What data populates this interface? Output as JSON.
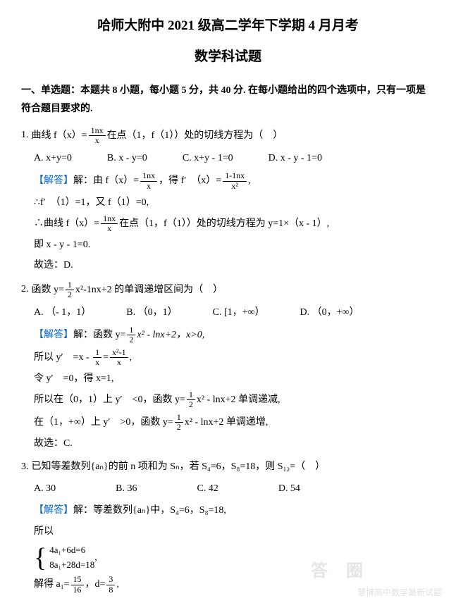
{
  "header": {
    "title_main": "哈师大附中 2021 级高二学年下学期 4 月月考",
    "title_sub": "数学科试题",
    "section_intro": "一、单选题：本题共 8 小题，每小题 5 分，共 40 分. 在每小题给出的四个选项中，只有一项是符合题目要求的."
  },
  "q1": {
    "num": "1.",
    "stem_pre": "曲线 f（x）=",
    "frac_num": "1nx",
    "frac_den": "x",
    "stem_post": "在点（1，f（1））处的切线方程为（　）",
    "opts": {
      "A": "A.  x+y=0",
      "B": "B.  x - y=0",
      "C": "C.  x+y - 1=0",
      "D": "D.  x - y - 1=0"
    },
    "sol": {
      "label": "【解答】",
      "l1a": "解：由 f（x）=",
      "l1_f1n": "1nx",
      "l1_f1d": "x",
      "l1b": "，得 f′　（x）=",
      "l1_f2n": "1-1nx",
      "l1_f2d": "x²",
      "l1c": ",",
      "l2": "∴f′　（1）=1，又 f（1）=0,",
      "l3a": "∴曲线 f（x）=",
      "l3_fn": "1nx",
      "l3_fd": "x",
      "l3b": "在点（1，f（1））处的切线方程为 y=1×（x - 1）,",
      "l4": "即 x - y - 1=0.",
      "l5": "故选：D."
    }
  },
  "q2": {
    "num": "2.",
    "stem_pre": "函数 y=",
    "f1n": "1",
    "f1d": "2",
    "stem_mid": "x²-1nx+2 的单调递增区间为（　）",
    "opts": {
      "A": "A. （- 1，1）",
      "B": "B. （0，1）",
      "C": "C.  [1，+∞）",
      "D": "D. （0，+∞）"
    },
    "sol": {
      "label": "【解答】",
      "l1a": "解：函数 y=",
      "l1_fn": "1",
      "l1_fd": "2",
      "l1b": "x² - lnx+2，x>0,",
      "l2a": "所以 y′　=x - ",
      "l2_f1n": "1",
      "l2_f1d": "x",
      "l2b": "=",
      "l2_f2n": "x²-1",
      "l2_f2d": "x",
      "l2c": ",",
      "l3": "令 y′　=0，得 x=1,",
      "l4a": "所以在（0，1）上 y′　<0，函数 y=",
      "l4_fn": "1",
      "l4_fd": "2",
      "l4b": "x² - lnx+2 单调递减,",
      "l5a": "在（1，+∞）上 y′　>0，函数 y=",
      "l5_fn": "1",
      "l5_fd": "2",
      "l5b": "x² - lnx+2 单调递增,",
      "l6": "故选：C."
    }
  },
  "q3": {
    "num": "3.",
    "stem": "已知等差数列{aₙ}的前 n 项和为 Sₙ，若 S₄=6，S₈=18，则 S₁₂=（　）",
    "opts": {
      "A": "A.  30",
      "B": "B.  36",
      "C": "C.  42",
      "D": "D.  54"
    },
    "sol": {
      "label": "【解答】",
      "l1": "解：等差数列{aₙ}中，S₄=6，S₈=18,",
      "l2": "所以",
      "brace1": "4a₁+6d=6",
      "brace2": "8a₁+28d=18",
      "brace_after": ",",
      "l3a": "解得 a₁=",
      "l3_f1n": "15",
      "l3_f1d": "16",
      "l3b": "，d=",
      "l3_f2n": "3",
      "l3_f2d": "8",
      "l3c": ","
    }
  },
  "watermark": "慧博高中数学最新试题",
  "stamp_left": "答",
  "stamp_right": "圈"
}
